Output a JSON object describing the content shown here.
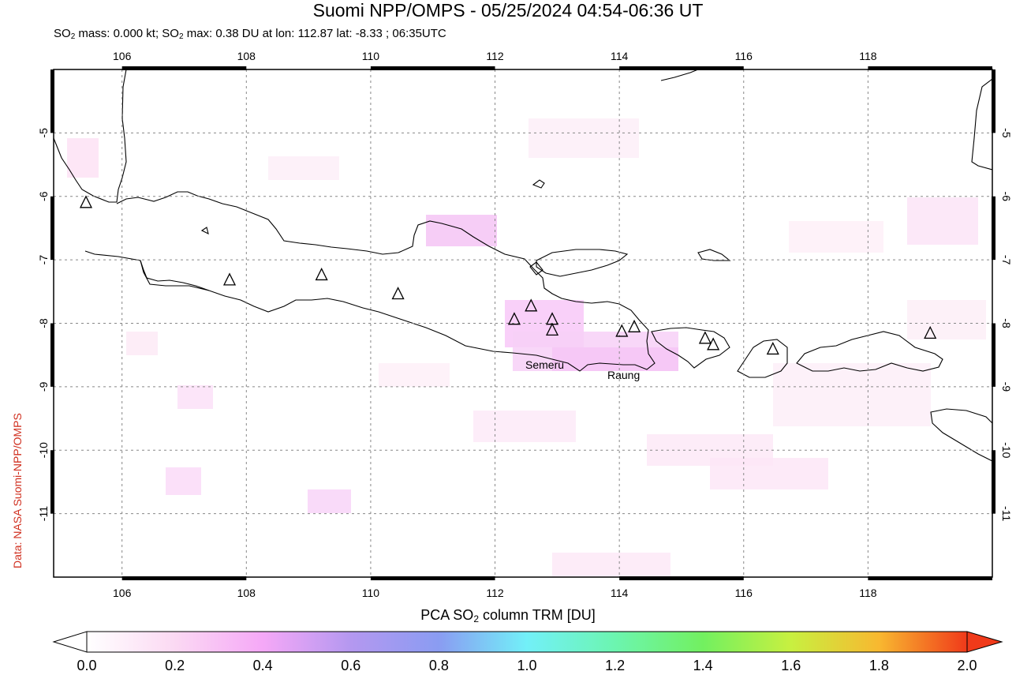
{
  "header": {
    "title": "Suomi NPP/OMPS - 05/25/2024 04:54-06:36 UT",
    "subtitle_pre": "SO",
    "subtitle_sub1": "2",
    "subtitle_mid": " mass: 0.000 kt; SO",
    "subtitle_sub2": "2",
    "subtitle_post": " max: 0.38 DU at lon: 112.87 lat: -8.33 ; 06:35UTC"
  },
  "credit": "Data: NASA Suomi-NPP/OMPS",
  "map": {
    "lon_ticks": [
      "106",
      "108",
      "110",
      "112",
      "114",
      "116",
      "118"
    ],
    "lat_ticks": [
      "-5",
      "-6",
      "-7",
      "-8",
      "-9",
      "-10",
      "-11"
    ],
    "lon_range": [
      104.9,
      120.0
    ],
    "lat_range": [
      -4.0,
      -12.0
    ],
    "volcano_labels": [
      {
        "name": "Semeru"
      },
      {
        "name": "Raung"
      }
    ],
    "volcanoes": [
      {
        "lon": 105.42,
        "lat": -6.1
      },
      {
        "lon": 107.73,
        "lat": -7.32
      },
      {
        "lon": 109.21,
        "lat": -7.24
      },
      {
        "lon": 110.44,
        "lat": -7.54
      },
      {
        "lon": 112.31,
        "lat": -7.94
      },
      {
        "lon": 112.58,
        "lat": -7.73
      },
      {
        "lon": 112.92,
        "lat": -7.94
      },
      {
        "lon": 112.92,
        "lat": -8.11
      },
      {
        "lon": 114.04,
        "lat": -8.13
      },
      {
        "lon": 114.24,
        "lat": -8.06
      },
      {
        "lon": 115.38,
        "lat": -8.24
      },
      {
        "lon": 115.51,
        "lat": -8.34
      },
      {
        "lon": 116.47,
        "lat": -8.41
      },
      {
        "lon": 119.0,
        "lat": -8.16
      }
    ],
    "grid": true
  },
  "colorbar": {
    "title_pre": "PCA SO",
    "title_sub": "2",
    "title_post": " column TRM [DU]",
    "labels": [
      "0.0",
      "0.2",
      "0.4",
      "0.6",
      "0.8",
      "1.0",
      "1.2",
      "1.4",
      "1.6",
      "1.8",
      "2.0"
    ],
    "range": [
      0.0,
      2.0
    ],
    "colors": [
      "#ffffff",
      "#fbd9f3",
      "#f5a8f7",
      "#b498f0",
      "#8a9cf2",
      "#72f0f8",
      "#6cf5b0",
      "#72f060",
      "#c8f040",
      "#f8b830",
      "#f03a1a"
    ]
  }
}
